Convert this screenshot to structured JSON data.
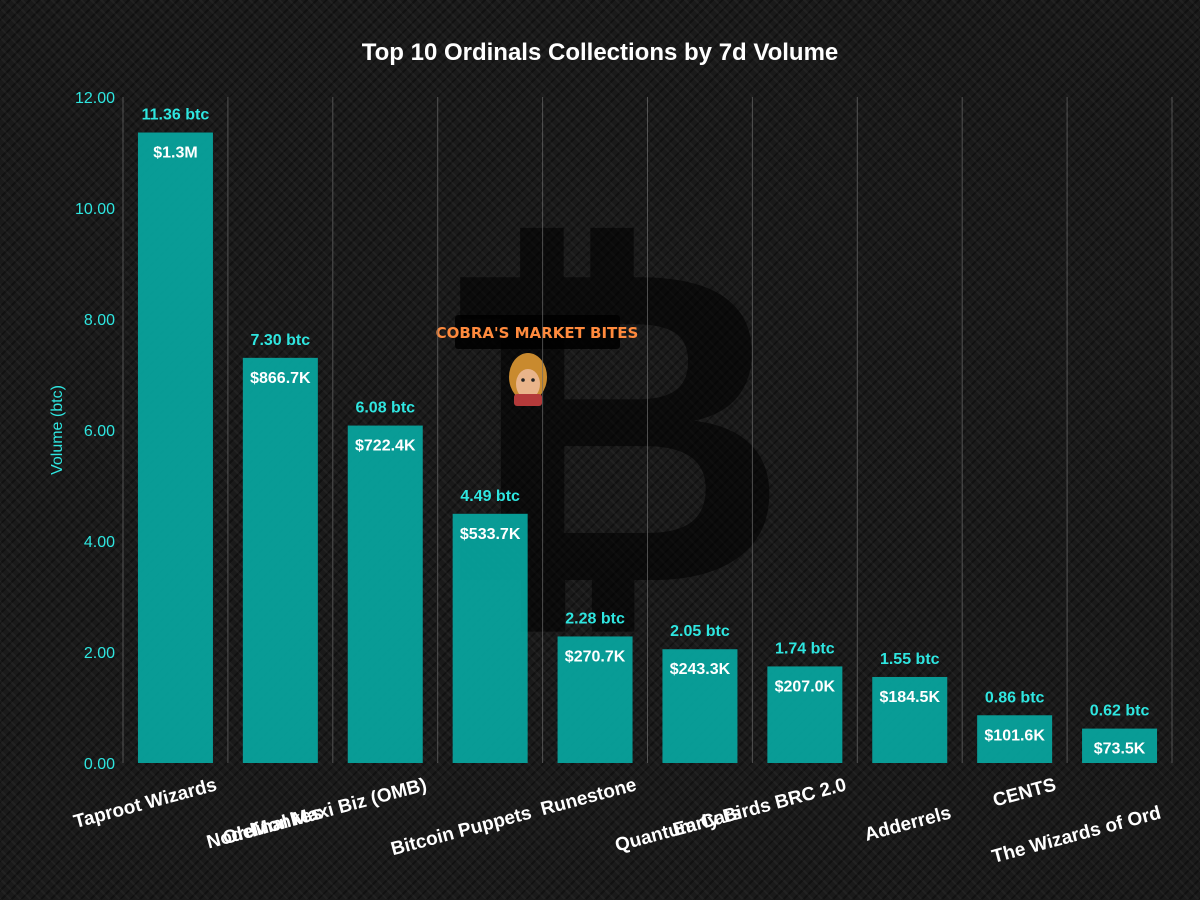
{
  "chart_data": {
    "type": "bar",
    "title": "Top 10 Ordinals Collections by 7d Volume",
    "xlabel": "",
    "ylabel": "Volume (btc)",
    "ylim": [
      0,
      12
    ],
    "yticks": [
      "0.00",
      "2.00",
      "4.00",
      "6.00",
      "8.00",
      "10.00",
      "12.00"
    ],
    "grid": "vertical",
    "bar_color": "#08a7a1",
    "categories": [
      "Taproot Wizards",
      "NodeMonkes",
      "Ordinal Maxi Biz (OMB)",
      "Bitcoin Puppets",
      "Runestone",
      "Quantum Cats",
      "Early Birds BRC 2.0",
      "Adderrels",
      "CENTS",
      "The Wizards of Ord"
    ],
    "values": [
      11.36,
      7.3,
      6.08,
      4.49,
      2.28,
      2.05,
      1.74,
      1.55,
      0.86,
      0.62
    ],
    "value_labels": [
      "11.36 btc",
      "7.30 btc",
      "6.08 btc",
      "4.49 btc",
      "2.28 btc",
      "2.05 btc",
      "1.74 btc",
      "1.55 btc",
      "0.86 btc",
      "0.62 btc"
    ],
    "usd_labels": [
      "$1.3M",
      "$866.7K",
      "$722.4K",
      "$533.7K",
      "$270.7K",
      "$243.3K",
      "$207.0K",
      "$184.5K",
      "$101.6K",
      "$73.5K"
    ]
  },
  "watermark": {
    "text": "COBRA'S MARKET BITES",
    "symbol": "₿"
  },
  "colors": {
    "accent": "#2ee6e0",
    "bar": "#08a7a1",
    "background": "#1a1a1a",
    "watermark_text": "#ff8a3d"
  }
}
